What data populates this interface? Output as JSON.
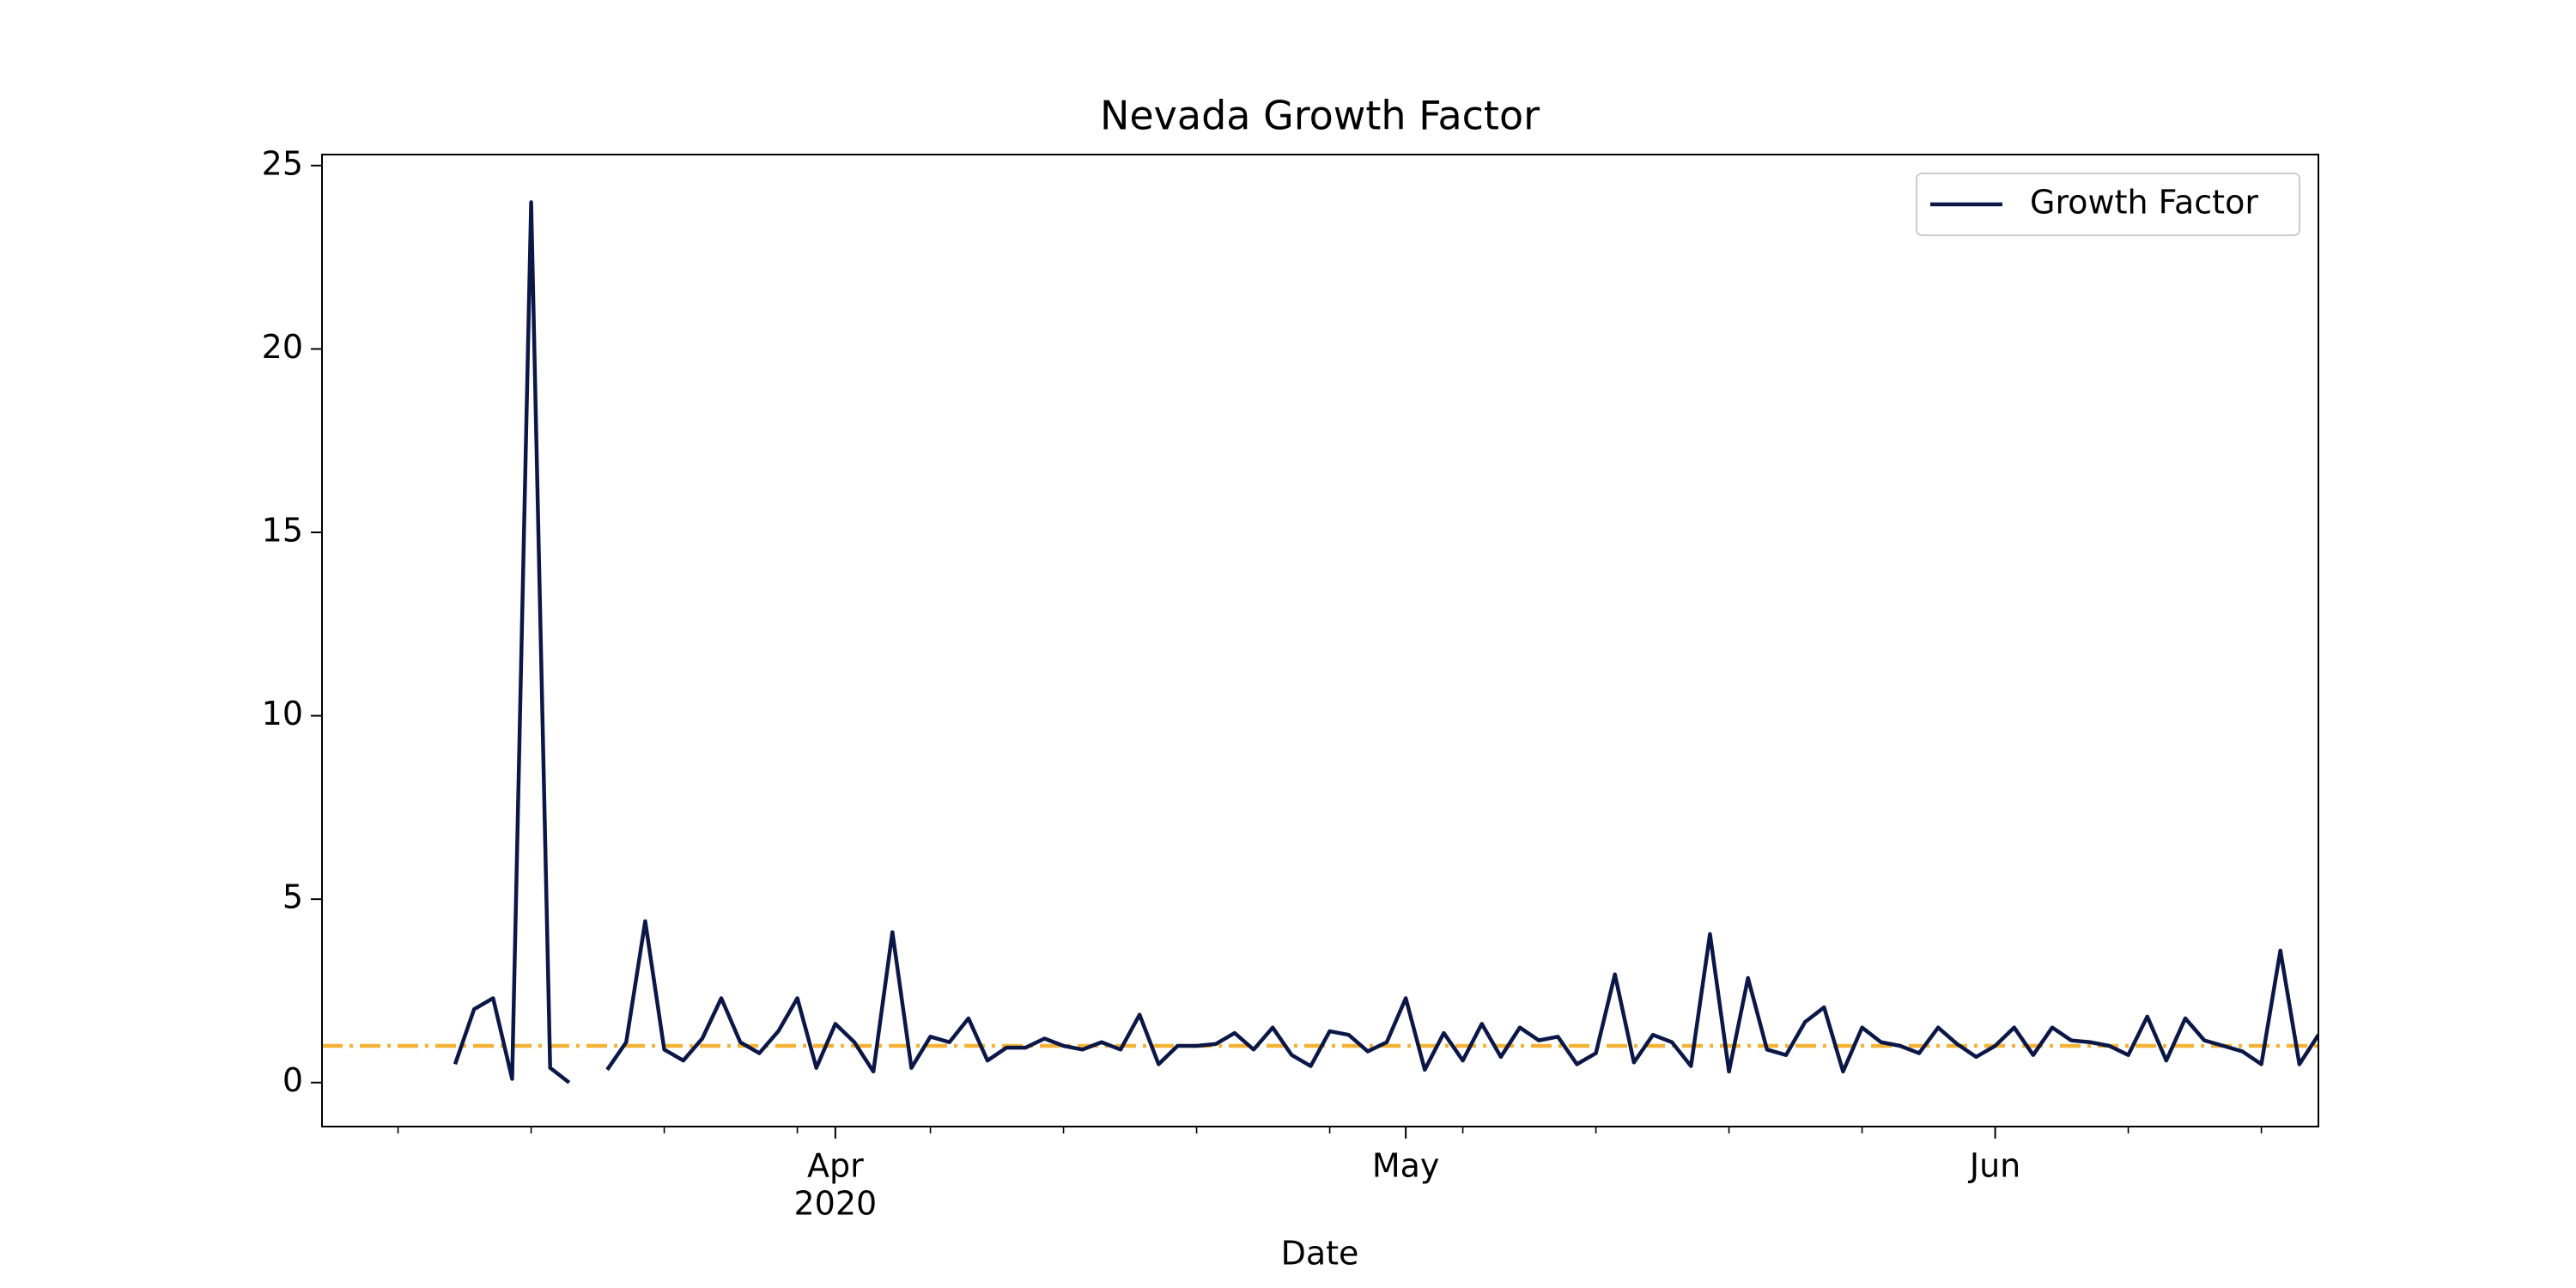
{
  "chart_data": {
    "type": "line",
    "title": "Nevada Growth Factor",
    "xlabel": "Date",
    "x": [
      "2020-03-12",
      "2020-03-13",
      "2020-03-14",
      "2020-03-15",
      "2020-03-16",
      "2020-03-17",
      "2020-03-18",
      "2020-03-19",
      "2020-03-20",
      "2020-03-21",
      "2020-03-22",
      "2020-03-23",
      "2020-03-24",
      "2020-03-25",
      "2020-03-26",
      "2020-03-27",
      "2020-03-28",
      "2020-03-29",
      "2020-03-30",
      "2020-03-31",
      "2020-04-01",
      "2020-04-02",
      "2020-04-03",
      "2020-04-04",
      "2020-04-05",
      "2020-04-06",
      "2020-04-07",
      "2020-04-08",
      "2020-04-09",
      "2020-04-10",
      "2020-04-11",
      "2020-04-12",
      "2020-04-13",
      "2020-04-14",
      "2020-04-15",
      "2020-04-16",
      "2020-04-17",
      "2020-04-18",
      "2020-04-19",
      "2020-04-20",
      "2020-04-21",
      "2020-04-22",
      "2020-04-23",
      "2020-04-24",
      "2020-04-25",
      "2020-04-26",
      "2020-04-27",
      "2020-04-28",
      "2020-04-29",
      "2020-04-30",
      "2020-05-01",
      "2020-05-02",
      "2020-05-03",
      "2020-05-04",
      "2020-05-05",
      "2020-05-06",
      "2020-05-07",
      "2020-05-08",
      "2020-05-09",
      "2020-05-10",
      "2020-05-11",
      "2020-05-12",
      "2020-05-13",
      "2020-05-14",
      "2020-05-15",
      "2020-05-16",
      "2020-05-17",
      "2020-05-18",
      "2020-05-19",
      "2020-05-20",
      "2020-05-21",
      "2020-05-22",
      "2020-05-23",
      "2020-05-24",
      "2020-05-25",
      "2020-05-26",
      "2020-05-27",
      "2020-05-28",
      "2020-05-29",
      "2020-05-30",
      "2020-05-31",
      "2020-06-01",
      "2020-06-02",
      "2020-06-03",
      "2020-06-04",
      "2020-06-05",
      "2020-06-06",
      "2020-06-07",
      "2020-06-08",
      "2020-06-09",
      "2020-06-10",
      "2020-06-11",
      "2020-06-12",
      "2020-06-13",
      "2020-06-14",
      "2020-06-15",
      "2020-06-16",
      "2020-06-17",
      "2020-06-18"
    ],
    "series": [
      {
        "name": "Growth Factor",
        "color": "#0b1747",
        "values": [
          0.5,
          2.0,
          2.3,
          0.1,
          24,
          0.4,
          0.0,
          null,
          0.35,
          1.1,
          4.4,
          0.9,
          0.6,
          1.2,
          2.3,
          1.1,
          0.8,
          1.4,
          2.3,
          0.4,
          1.6,
          1.1,
          0.3,
          4.1,
          0.4,
          1.25,
          1.1,
          1.75,
          0.6,
          0.95,
          0.95,
          1.2,
          1.0,
          0.9,
          1.1,
          0.9,
          1.85,
          0.5,
          1.0,
          1.0,
          1.05,
          1.35,
          0.9,
          1.5,
          0.75,
          0.45,
          1.4,
          1.3,
          0.85,
          1.1,
          2.3,
          0.35,
          1.35,
          0.6,
          1.6,
          0.7,
          1.5,
          1.15,
          1.25,
          0.5,
          0.8,
          2.95,
          0.55,
          1.3,
          1.1,
          0.45,
          4.05,
          0.3,
          2.85,
          0.9,
          0.75,
          1.65,
          2.05,
          0.3,
          1.5,
          1.1,
          1.0,
          0.8,
          1.5,
          1.05,
          0.7,
          1.0,
          1.5,
          0.75,
          1.5,
          1.15,
          1.1,
          1.0,
          0.75,
          1.8,
          0.6,
          1.75,
          1.15,
          1.0,
          0.85,
          0.5,
          3.6,
          0.5,
          1.3
        ]
      }
    ],
    "hline": {
      "value": 1,
      "color": "#f4b234"
    },
    "xlim": [
      "2020-03-05",
      "2020-06-18"
    ],
    "xticks": [
      {
        "value": "2020-04-01",
        "label": [
          "Apr",
          "2020"
        ]
      },
      {
        "value": "2020-05-01",
        "label": [
          "May"
        ]
      },
      {
        "value": "2020-06-01",
        "label": [
          "Jun"
        ]
      }
    ],
    "xminorticks": [
      "2020-03-09",
      "2020-03-16",
      "2020-03-23",
      "2020-03-30",
      "2020-04-06",
      "2020-04-13",
      "2020-04-20",
      "2020-04-27",
      "2020-05-04",
      "2020-05-11",
      "2020-05-18",
      "2020-05-25",
      "2020-06-08",
      "2020-06-15"
    ],
    "ylim": [
      -1.2,
      25.3
    ],
    "yticks": [
      0,
      5,
      10,
      15,
      20,
      25
    ],
    "legend": "upper right"
  }
}
